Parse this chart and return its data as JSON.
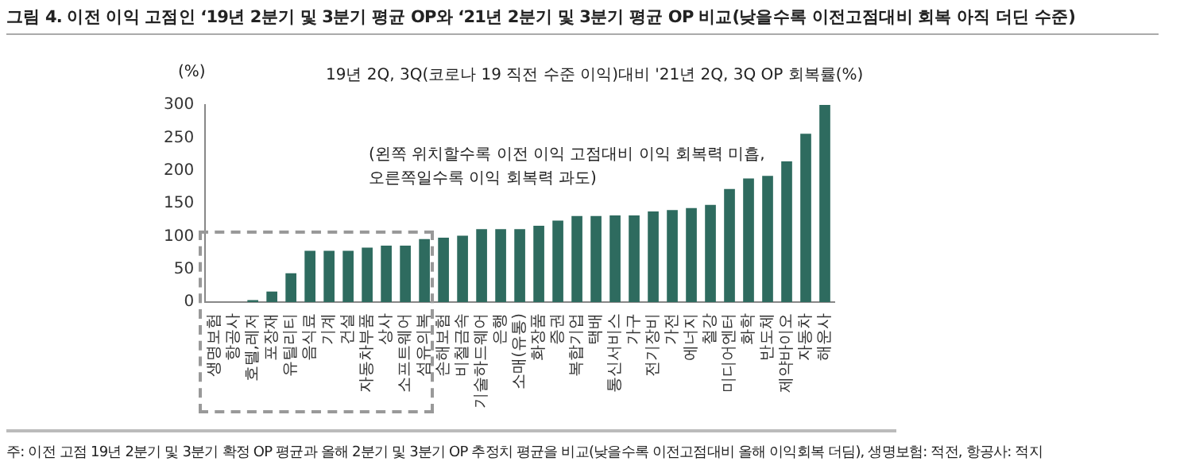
{
  "chart_data": {
    "type": "bar",
    "title": "그림 4. 이전 이익 고점인 ‘19년 2분기 및 3분기 평균 OP와 ‘21년 2분기 및 3분기 평균 OP 비교(낮을수록 이전고점대비 회복 아직 더딘 수준)",
    "subtitle": "19년 2Q, 3Q(코로나 19 직전 수준 이익)대비 '21년 2Q, 3Q OP 회복률(%)",
    "ylabel": "(%)",
    "categories": [
      "생명보험",
      "항공사",
      "호텔,레저",
      "포장재",
      "유틸리티",
      "음식료",
      "기계",
      "건설",
      "자동차부품",
      "상사",
      "소프트웨어",
      "섬유의복",
      "손해보험",
      "비철금속",
      "기술하드웨어",
      "은행",
      "소매(유통)",
      "화장품",
      "증권",
      "복합기업",
      "택배",
      "통신서비스",
      "가구",
      "전기장비",
      "가전",
      "에너지",
      "철강",
      "미디어엔터",
      "화학",
      "반도체",
      "제약바이오",
      "자동차",
      "해운사"
    ],
    "values": [
      0,
      0,
      3,
      16,
      44,
      78,
      78,
      78,
      83,
      86,
      86,
      96,
      98,
      101,
      111,
      111,
      111,
      116,
      124,
      131,
      131,
      132,
      132,
      138,
      140,
      143,
      148,
      172,
      188,
      192,
      214,
      256,
      300
    ],
    "color": "#2e6b5f",
    "ylim": [
      0,
      300
    ],
    "yticks": [
      0,
      50,
      100,
      150,
      200,
      250,
      300
    ],
    "grid": false,
    "legend": false,
    "annotations": [
      "(왼쪽 위치할수록 이전 이익 고점대비 이익 회복력 미흡, 오른쪽일수록 이익 회복력 과도)",
      "주: 이전 고점 19년 2분기 및 3분기 확정 OP 평균과 올해 2분기 및 3분기 OP 추정치 평균을 비교(낮을수록 이전고점대비 올해 이익회복 더딤), 생명보험: 적전, 항공사: 적지"
    ]
  }
}
